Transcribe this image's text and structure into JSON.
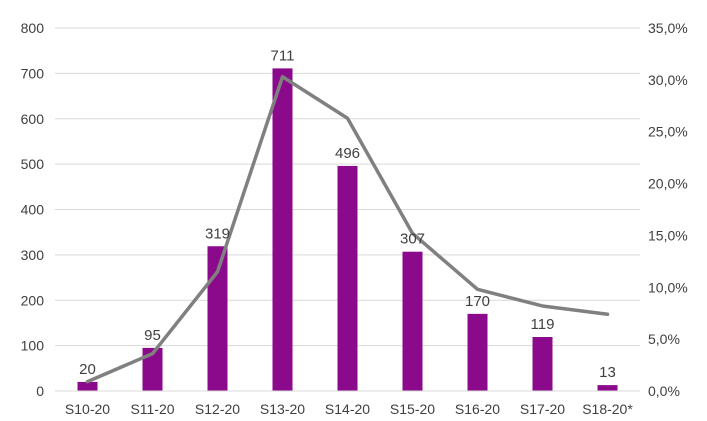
{
  "chart_data": {
    "type": "bar",
    "categories": [
      "S10-20",
      "S11-20",
      "S12-20",
      "S13-20",
      "S14-20",
      "S15-20",
      "S16-20",
      "S17-20",
      "S18-20*"
    ],
    "series": [
      {
        "type": "bar",
        "axis": "left",
        "color": "#8B0A8B",
        "values": [
          20,
          95,
          319,
          711,
          496,
          307,
          170,
          119,
          13
        ]
      },
      {
        "type": "line",
        "axis": "right",
        "color": "#808080",
        "values": [
          0.9,
          3.6,
          11.5,
          30.3,
          26.3,
          15.2,
          9.8,
          8.2,
          7.4
        ]
      }
    ],
    "data_labels": [
      "20",
      "95",
      "319",
      "711",
      "496",
      "307",
      "170",
      "119",
      "13"
    ],
    "y_left": {
      "min": 0,
      "max": 800,
      "ticks": [
        "0",
        "100",
        "200",
        "300",
        "400",
        "500",
        "600",
        "700",
        "800"
      ]
    },
    "y_right": {
      "min": 0,
      "max": 35,
      "ticks": [
        "0,0%",
        "5,0%",
        "10,0%",
        "15,0%",
        "20,0%",
        "25,0%",
        "30,0%",
        "35,0%"
      ]
    },
    "grid": true,
    "title": "",
    "xlabel": "",
    "ylabel": ""
  }
}
